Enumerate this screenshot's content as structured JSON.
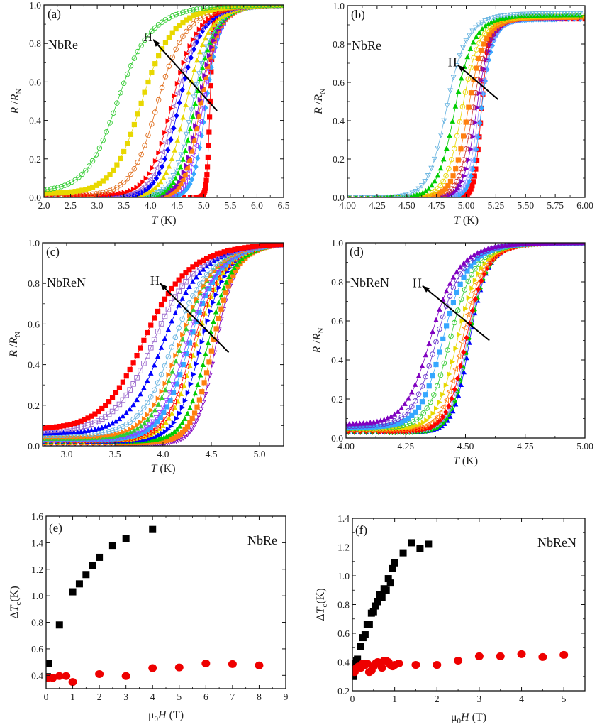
{
  "figure": {
    "description": "Normalized resistance vs temperature for NbRe and NbReN films at various magnetic fields, and transition width vs field"
  },
  "chart_data": [
    {
      "id": "a",
      "type": "scatter",
      "panel_label": "(a)",
      "sample": "NbRe",
      "arrow_label": "H",
      "xlabel_italic": "T",
      "xlabel_rest": " (K)",
      "ylabel_italic1": "R",
      "ylabel_mid": " /",
      "ylabel_italic2": "R",
      "ylabel_sub": "N",
      "xlim": [
        2.0,
        6.5
      ],
      "ylim": [
        0.0,
        1.0
      ],
      "xticks": [
        "2.0",
        "2.5",
        "3.0",
        "3.5",
        "4.0",
        "4.5",
        "5.0",
        "5.5",
        "6.0",
        "6.5"
      ],
      "yticks": [
        "0.0",
        "0.2",
        "0.4",
        "0.6",
        "0.8",
        "1.0"
      ],
      "arrow": {
        "from": [
          5.25,
          0.45
        ],
        "to": [
          4.05,
          0.82
        ]
      },
      "curve_model": "sigmoid R/RN = base + (1-base)/(1+exp(-(T-Tm)/w))",
      "series": [
        {
          "name": "H1",
          "color": "#ff0000",
          "marker": "square",
          "filled": true,
          "Tm": 5.12,
          "w": 0.03,
          "base": 0.0
        },
        {
          "name": "H2",
          "color": "#35a7ff",
          "marker": "diamond",
          "filled": true,
          "Tm": 5.05,
          "w": 0.12,
          "base": 0.0
        },
        {
          "name": "H3",
          "color": "#9933ff",
          "marker": "triangle-left",
          "filled": false,
          "Tm": 5.0,
          "w": 0.14,
          "base": 0.0
        },
        {
          "name": "H4",
          "color": "#ff7f0e",
          "marker": "square",
          "filled": true,
          "Tm": 4.95,
          "w": 0.15,
          "base": 0.0
        },
        {
          "name": "H5",
          "color": "#8000c0",
          "marker": "triangle-right",
          "filled": true,
          "Tm": 4.92,
          "w": 0.16,
          "base": 0.0
        },
        {
          "name": "H6",
          "color": "#00dd00",
          "marker": "triangle-up",
          "filled": true,
          "Tm": 4.85,
          "w": 0.17,
          "base": 0.0
        },
        {
          "name": "H7",
          "color": "#66b3e0",
          "marker": "triangle-down",
          "filled": false,
          "Tm": 4.8,
          "w": 0.18,
          "base": 0.0
        },
        {
          "name": "H8",
          "color": "#e8d800",
          "marker": "triangle-up",
          "filled": true,
          "Tm": 4.68,
          "w": 0.2,
          "base": 0.0
        },
        {
          "name": "H9",
          "color": "#0000ff",
          "marker": "diamond",
          "filled": true,
          "Tm": 4.55,
          "w": 0.2,
          "base": 0.0
        },
        {
          "name": "H10",
          "color": "#9966cc",
          "marker": "triangle-left",
          "filled": false,
          "Tm": 4.48,
          "w": 0.21,
          "base": 0.0
        },
        {
          "name": "H11",
          "color": "#ff0000",
          "marker": "triangle-right",
          "filled": true,
          "Tm": 4.42,
          "w": 0.22,
          "base": 0.01
        },
        {
          "name": "H12",
          "color": "#e07020",
          "marker": "circle",
          "filled": false,
          "Tm": 4.15,
          "w": 0.25,
          "base": 0.01
        },
        {
          "name": "H13",
          "color": "#e8d800",
          "marker": "square",
          "filled": true,
          "Tm": 3.85,
          "w": 0.28,
          "base": 0.02
        },
        {
          "name": "H14",
          "color": "#33cc33",
          "marker": "circle",
          "filled": false,
          "Tm": 3.4,
          "w": 0.3,
          "base": 0.03
        }
      ]
    },
    {
      "id": "b",
      "type": "scatter",
      "panel_label": "(b)",
      "sample": "NbRe",
      "arrow_label": "H",
      "xlabel_italic": "T",
      "xlabel_rest": " (K)",
      "ylabel_italic1": "R",
      "ylabel_mid": " /",
      "ylabel_italic2": "R",
      "ylabel_sub": "N",
      "xlim": [
        4.0,
        6.0
      ],
      "ylim": [
        0.0,
        1.0
      ],
      "xticks": [
        "4.00",
        "4.25",
        "4.50",
        "4.75",
        "5.00",
        "5.25",
        "5.50",
        "5.75",
        "6.00"
      ],
      "yticks": [
        "0.0",
        "0.2",
        "0.4",
        "0.6",
        "0.8",
        "1.0"
      ],
      "arrow": {
        "from": [
          5.27,
          0.51
        ],
        "to": [
          4.93,
          0.69
        ]
      },
      "curve_model": "sigmoid, plateau ~0.93-0.96",
      "series": [
        {
          "name": "H1",
          "color": "#ff0000",
          "marker": "square",
          "filled": true,
          "Tm": 5.13,
          "w": 0.03,
          "top": 0.93
        },
        {
          "name": "H2",
          "color": "#35a7ff",
          "marker": "diamond",
          "filled": true,
          "Tm": 5.13,
          "w": 0.045,
          "top": 0.93
        },
        {
          "name": "H3",
          "color": "#9999ff",
          "marker": "triangle-left",
          "filled": false,
          "Tm": 5.11,
          "w": 0.05,
          "top": 0.935
        },
        {
          "name": "H4",
          "color": "#8000c0",
          "marker": "triangle-right",
          "filled": true,
          "Tm": 5.09,
          "w": 0.055,
          "top": 0.935
        },
        {
          "name": "H5",
          "color": "#cc3333",
          "marker": "circle",
          "filled": false,
          "Tm": 5.06,
          "w": 0.06,
          "top": 0.94
        },
        {
          "name": "H6",
          "color": "#ff7f0e",
          "marker": "square",
          "filled": true,
          "Tm": 5.02,
          "w": 0.065,
          "top": 0.94
        },
        {
          "name": "H7",
          "color": "#e8d800",
          "marker": "circle",
          "filled": false,
          "Tm": 4.97,
          "w": 0.07,
          "top": 0.945
        },
        {
          "name": "H8",
          "color": "#00cc00",
          "marker": "triangle-up",
          "filled": true,
          "Tm": 4.91,
          "w": 0.075,
          "top": 0.95
        },
        {
          "name": "H9",
          "color": "#66b3e0",
          "marker": "triangle-down",
          "filled": false,
          "Tm": 4.84,
          "w": 0.08,
          "top": 0.96
        }
      ]
    },
    {
      "id": "c",
      "type": "scatter",
      "panel_label": "(c)",
      "sample": "NbReN",
      "arrow_label": "H",
      "xlabel_italic": "T",
      "xlabel_rest": " (K)",
      "ylabel_italic1": "R",
      "ylabel_mid": " /",
      "ylabel_italic2": "R",
      "ylabel_sub": "N",
      "xlim": [
        2.75,
        5.25
      ],
      "ylim": [
        0.0,
        1.0
      ],
      "xticks": [
        "3.0",
        "3.5",
        "4.0",
        "4.5",
        "5.0"
      ],
      "yticks": [
        "0.0",
        "0.2",
        "0.4",
        "0.6",
        "0.8",
        "1.0"
      ],
      "arrow": {
        "from": [
          4.68,
          0.46
        ],
        "to": [
          3.97,
          0.8
        ]
      },
      "series": [
        {
          "name": "H1",
          "color": "#8000c0",
          "marker": "triangle-down",
          "filled": false,
          "Tm": 4.55,
          "w": 0.1,
          "base": 0.01
        },
        {
          "name": "H2",
          "color": "#ff7f0e",
          "marker": "square",
          "filled": true,
          "Tm": 4.52,
          "w": 0.11,
          "base": 0.015
        },
        {
          "name": "H3",
          "color": "#00cc00",
          "marker": "triangle-up",
          "filled": true,
          "Tm": 4.47,
          "w": 0.12,
          "base": 0.02
        },
        {
          "name": "H4",
          "color": "#0000ff",
          "marker": "triangle-right",
          "filled": true,
          "Tm": 4.4,
          "w": 0.13,
          "base": 0.02
        },
        {
          "name": "H5",
          "color": "#e8d800",
          "marker": "triangle-up",
          "filled": true,
          "Tm": 4.35,
          "w": 0.14,
          "base": 0.025
        },
        {
          "name": "H6",
          "color": "#ff0000",
          "marker": "triangle-left",
          "filled": false,
          "Tm": 4.32,
          "w": 0.145,
          "base": 0.025
        },
        {
          "name": "H7",
          "color": "#35a7ff",
          "marker": "square",
          "filled": true,
          "Tm": 4.28,
          "w": 0.15,
          "base": 0.03
        },
        {
          "name": "H8",
          "color": "#9933ff",
          "marker": "triangle-down",
          "filled": false,
          "Tm": 4.25,
          "w": 0.155,
          "base": 0.03
        },
        {
          "name": "H9",
          "color": "#33cc33",
          "marker": "triangle-up",
          "filled": true,
          "Tm": 4.2,
          "w": 0.16,
          "base": 0.035
        },
        {
          "name": "H10",
          "color": "#ff7f0e",
          "marker": "triangle-right",
          "filled": true,
          "Tm": 4.18,
          "w": 0.17,
          "base": 0.04
        },
        {
          "name": "H11",
          "color": "#66b3e0",
          "marker": "circle",
          "filled": false,
          "Tm": 4.12,
          "w": 0.18,
          "base": 0.05
        },
        {
          "name": "H12",
          "color": "#0000ff",
          "marker": "triangle-up",
          "filled": true,
          "Tm": 4.02,
          "w": 0.19,
          "base": 0.06
        },
        {
          "name": "H13",
          "color": "#9966cc",
          "marker": "square",
          "filled": false,
          "Tm": 3.92,
          "w": 0.21,
          "base": 0.07
        },
        {
          "name": "H14",
          "color": "#ff0000",
          "marker": "square",
          "filled": true,
          "Tm": 3.82,
          "w": 0.22,
          "base": 0.08
        }
      ]
    },
    {
      "id": "d",
      "type": "scatter",
      "panel_label": "(d)",
      "sample": "NbReN",
      "arrow_label": "H",
      "xlabel_italic": "T",
      "xlabel_rest": " (K)",
      "ylabel_italic1": "R",
      "ylabel_mid": " /",
      "ylabel_italic2": "R",
      "ylabel_sub": "N",
      "xlim": [
        4.0,
        5.0
      ],
      "ylim": [
        0.0,
        1.0
      ],
      "xticks": [
        "4.00",
        "4.25",
        "4.50",
        "4.75",
        "5.00"
      ],
      "yticks": [
        "0.0",
        "0.2",
        "0.4",
        "0.6",
        "0.8",
        "1.0"
      ],
      "arrow": {
        "from": [
          4.6,
          0.5
        ],
        "to": [
          4.32,
          0.78
        ]
      },
      "series": [
        {
          "name": "H1",
          "color": "#0000ff",
          "marker": "triangle-up",
          "filled": true,
          "Tm": 4.52,
          "w": 0.035,
          "base": 0.03
        },
        {
          "name": "H2",
          "color": "#00cc00",
          "marker": "diamond",
          "filled": true,
          "Tm": 4.515,
          "w": 0.037,
          "base": 0.03
        },
        {
          "name": "H3",
          "color": "#9999ff",
          "marker": "triangle-down",
          "filled": false,
          "Tm": 4.51,
          "w": 0.038,
          "base": 0.035
        },
        {
          "name": "H4",
          "color": "#ff0000",
          "marker": "diamond",
          "filled": true,
          "Tm": 4.505,
          "w": 0.04,
          "base": 0.035
        },
        {
          "name": "H5",
          "color": "#ff7f0e",
          "marker": "triangle-left",
          "filled": false,
          "Tm": 4.49,
          "w": 0.042,
          "base": 0.04
        },
        {
          "name": "H6",
          "color": "#e8d800",
          "marker": "triangle-right",
          "filled": true,
          "Tm": 4.47,
          "w": 0.045,
          "base": 0.045
        },
        {
          "name": "H7",
          "color": "#33cc33",
          "marker": "circle",
          "filled": false,
          "Tm": 4.44,
          "w": 0.048,
          "base": 0.05
        },
        {
          "name": "H8",
          "color": "#35a7ff",
          "marker": "square",
          "filled": true,
          "Tm": 4.41,
          "w": 0.05,
          "base": 0.055
        },
        {
          "name": "H9",
          "color": "#6633cc",
          "marker": "circle",
          "filled": false,
          "Tm": 4.385,
          "w": 0.052,
          "base": 0.06
        },
        {
          "name": "H10",
          "color": "#8000c0",
          "marker": "triangle-up",
          "filled": true,
          "Tm": 4.36,
          "w": 0.055,
          "base": 0.07
        }
      ]
    },
    {
      "id": "e",
      "type": "scatter",
      "panel_label": "(e)",
      "sample": "NbRe",
      "xlabel_pre": "μ",
      "xlabel_sub": "0",
      "xlabel_italic": "H",
      "xlabel_rest": " (T)",
      "ylabel_pre": "Δ",
      "ylabel_italic": "T",
      "ylabel_sub": "c",
      "ylabel_rest": "(K)",
      "xlim": [
        0,
        9
      ],
      "ylim": [
        0.3,
        1.6
      ],
      "xticks": [
        "0",
        "1",
        "2",
        "3",
        "4",
        "5",
        "6",
        "7",
        "8",
        "9"
      ],
      "yticks": [
        "0.4",
        "0.6",
        "0.8",
        "1.0",
        "1.2",
        "1.4",
        "1.6"
      ],
      "ytick_values": [
        0.4,
        0.6,
        0.8,
        1.0,
        1.2,
        1.4,
        1.6
      ],
      "series": [
        {
          "name": "black-squares",
          "color": "#000000",
          "marker": "square",
          "x": [
            0.05,
            0.1,
            0.5,
            1.0,
            1.25,
            1.5,
            1.75,
            2.0,
            2.5,
            3.0,
            4.0
          ],
          "y": [
            0.39,
            0.49,
            0.78,
            1.03,
            1.09,
            1.16,
            1.23,
            1.29,
            1.38,
            1.43,
            1.5
          ]
        },
        {
          "name": "red-circles",
          "color": "#ee0000",
          "marker": "circle",
          "x": [
            0.05,
            0.25,
            0.5,
            0.75,
            1.0,
            2.0,
            3.0,
            4.0,
            5.0,
            6.0,
            7.0,
            8.0
          ],
          "y": [
            0.38,
            0.38,
            0.395,
            0.395,
            0.35,
            0.41,
            0.395,
            0.455,
            0.46,
            0.49,
            0.485,
            0.475
          ]
        }
      ]
    },
    {
      "id": "f",
      "type": "scatter",
      "panel_label": "(f)",
      "sample": "NbReN",
      "xlabel_pre": "μ",
      "xlabel_sub": "0",
      "xlabel_italic": "H",
      "xlabel_rest": " (T)",
      "ylabel_pre": "Δ",
      "ylabel_italic": "T",
      "ylabel_sub": "c",
      "ylabel_rest": "(K)",
      "xlim": [
        0,
        5.5
      ],
      "ylim": [
        0.2,
        1.4
      ],
      "xticks": [
        "0",
        "1",
        "2",
        "3",
        "4",
        "5"
      ],
      "yticks": [
        "0.2",
        "0.4",
        "0.6",
        "0.8",
        "1.0",
        "1.2",
        "1.4"
      ],
      "ytick_values": [
        0.2,
        0.4,
        0.6,
        0.8,
        1.0,
        1.2,
        1.4
      ],
      "series": [
        {
          "name": "black-squares",
          "color": "#000000",
          "marker": "square",
          "x": [
            0.02,
            0.04,
            0.06,
            0.08,
            0.1,
            0.12,
            0.2,
            0.25,
            0.3,
            0.35,
            0.4,
            0.45,
            0.5,
            0.55,
            0.6,
            0.65,
            0.7,
            0.75,
            0.8,
            0.85,
            0.9,
            0.95,
            1.0,
            1.2,
            1.4,
            1.6,
            1.8
          ],
          "y": [
            0.3,
            0.34,
            0.37,
            0.39,
            0.41,
            0.42,
            0.51,
            0.57,
            0.59,
            0.66,
            0.66,
            0.74,
            0.75,
            0.79,
            0.82,
            0.87,
            0.85,
            0.91,
            0.9,
            0.98,
            0.95,
            1.05,
            1.09,
            1.16,
            1.23,
            1.19,
            1.22
          ]
        },
        {
          "name": "red-circles",
          "color": "#ee0000",
          "marker": "circle",
          "x": [
            0.05,
            0.1,
            0.15,
            0.2,
            0.25,
            0.3,
            0.35,
            0.4,
            0.45,
            0.5,
            0.55,
            0.6,
            0.65,
            0.7,
            0.75,
            0.8,
            0.85,
            0.9,
            0.95,
            1.0,
            1.1,
            1.5,
            2.0,
            2.5,
            3.0,
            3.5,
            4.0,
            4.5,
            5.0
          ],
          "y": [
            0.33,
            0.36,
            0.37,
            0.36,
            0.39,
            0.38,
            0.39,
            0.33,
            0.34,
            0.37,
            0.39,
            0.4,
            0.39,
            0.36,
            0.41,
            0.41,
            0.4,
            0.38,
            0.37,
            0.38,
            0.39,
            0.38,
            0.38,
            0.41,
            0.44,
            0.44,
            0.455,
            0.435,
            0.45
          ]
        }
      ]
    }
  ]
}
